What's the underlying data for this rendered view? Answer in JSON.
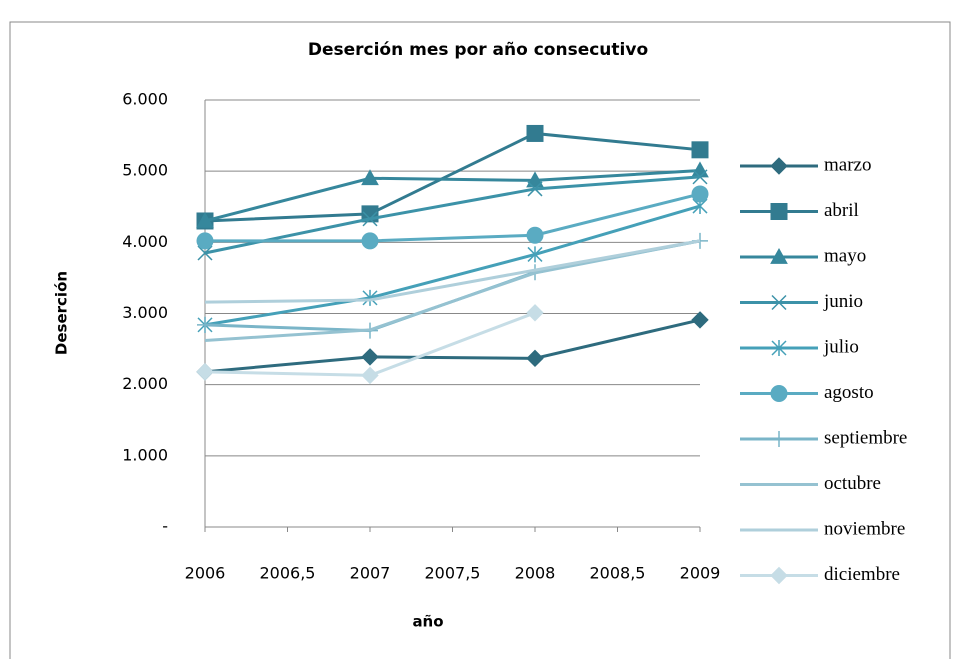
{
  "chart_data": {
    "type": "line",
    "title": "Deserción mes por año consecutivo",
    "x_label": "año",
    "y_label": "Deserción",
    "x": [
      2006,
      2007,
      2008,
      2009
    ],
    "xlim": [
      2006,
      2009
    ],
    "xticks": [
      2006,
      {
        "value": 2006.5,
        "label": "2006,5"
      },
      2007,
      {
        "value": 2007.5,
        "label": "2007,5"
      },
      2008,
      {
        "value": 2008.5,
        "label": "2008,5"
      },
      2009
    ],
    "ylim": [
      0,
      6000
    ],
    "yticks": [
      {
        "value": 0,
        "label": "-"
      },
      {
        "value": 1000,
        "label": "1.000"
      },
      {
        "value": 2000,
        "label": "2.000"
      },
      {
        "value": 3000,
        "label": "3.000"
      },
      {
        "value": 4000,
        "label": "4.000"
      },
      {
        "value": 5000,
        "label": "5.000"
      },
      {
        "value": 6000,
        "label": "6.000"
      }
    ],
    "grid": true,
    "legend": "right",
    "series": [
      {
        "name": "marzo",
        "color": "#2e6b7e",
        "marker": "diamond",
        "values": [
          2180,
          2390,
          2370,
          2910
        ]
      },
      {
        "name": "abril",
        "color": "#327b90",
        "marker": "square",
        "values": [
          4300,
          4400,
          5530,
          5300
        ]
      },
      {
        "name": "mayo",
        "color": "#36879c",
        "marker": "triangle",
        "values": [
          4300,
          4900,
          4870,
          5010
        ]
      },
      {
        "name": "junio",
        "color": "#3c92a8",
        "marker": "x",
        "values": [
          3850,
          4330,
          4750,
          4920
        ]
      },
      {
        "name": "julio",
        "color": "#45a0b8",
        "marker": "star",
        "values": [
          2840,
          3220,
          3830,
          4510
        ]
      },
      {
        "name": "agosto",
        "color": "#5aabc2",
        "marker": "circle",
        "values": [
          4020,
          4020,
          4100,
          4680
        ]
      },
      {
        "name": "septiembre",
        "color": "#7ab5c8",
        "marker": "plus",
        "values": [
          2840,
          2760,
          3580,
          4020
        ]
      },
      {
        "name": "octubre",
        "color": "#95c2d1",
        "marker": "none",
        "values": [
          2620,
          2770,
          3570,
          4020
        ]
      },
      {
        "name": "noviembre",
        "color": "#afcfdb",
        "marker": "none",
        "values": [
          3160,
          3190,
          3610,
          4020
        ]
      },
      {
        "name": "diciembre",
        "color": "#c6dde6",
        "marker": "diamond",
        "values": [
          2180,
          2130,
          3010,
          null
        ]
      }
    ]
  }
}
